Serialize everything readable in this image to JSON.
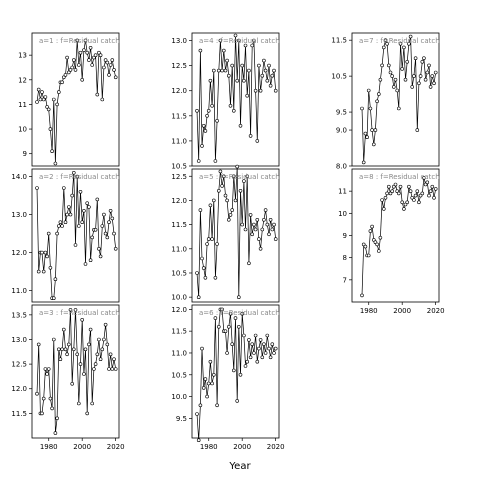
{
  "figure": {
    "xlabel": "Year"
  },
  "chart_data": [
    {
      "type": "line",
      "title": "a=1 : f=Residual catch",
      "x": [
        1973,
        1974,
        1975,
        1976,
        1977,
        1978,
        1979,
        1980,
        1981,
        1982,
        1983,
        1984,
        1985,
        1986,
        1987,
        1988,
        1989,
        1990,
        1991,
        1992,
        1993,
        1994,
        1995,
        1996,
        1997,
        1998,
        1999,
        2000,
        2001,
        2002,
        2003,
        2004,
        2005,
        2006,
        2007,
        2008,
        2009,
        2010,
        2011,
        2012,
        2013,
        2014,
        2015,
        2016,
        2017,
        2018,
        2019,
        2020
      ],
      "y": [
        11.1,
        11.6,
        11.2,
        11.5,
        11.2,
        11.3,
        10.9,
        10.8,
        10.0,
        9.1,
        11.2,
        8.6,
        11.0,
        11.5,
        11.9,
        11.9,
        12.1,
        12.2,
        12.9,
        12.3,
        12.4,
        12.5,
        12.8,
        12.4,
        13.6,
        12.6,
        13.1,
        12.0,
        13.2,
        13.6,
        13.1,
        12.8,
        13.3,
        12.6,
        12.9,
        13.0,
        11.4,
        13.1,
        13.0,
        11.2,
        12.5,
        12.8,
        12.7,
        12.2,
        12.6,
        12.8,
        12.4,
        12.1
      ],
      "xlim": [
        1970,
        2022
      ],
      "ylim": [
        8.5,
        13.9
      ],
      "yticks": [
        "9",
        "10",
        "11",
        "12",
        "13"
      ],
      "ytick_values": [
        9,
        10,
        11,
        12,
        13
      ]
    },
    {
      "type": "line",
      "title": "a=2 : f=Residual catch",
      "x": [
        1973,
        1974,
        1975,
        1976,
        1977,
        1978,
        1979,
        1980,
        1981,
        1982,
        1983,
        1984,
        1985,
        1986,
        1987,
        1988,
        1989,
        1990,
        1991,
        1992,
        1993,
        1994,
        1995,
        1996,
        1997,
        1998,
        1999,
        2000,
        2001,
        2002,
        2003,
        2004,
        2005,
        2006,
        2007,
        2008,
        2009,
        2010,
        2011,
        2012,
        2013,
        2014,
        2015,
        2016,
        2017,
        2018,
        2019,
        2020
      ],
      "y": [
        13.7,
        11.5,
        12.0,
        12.0,
        11.5,
        12.0,
        11.9,
        12.5,
        11.6,
        10.8,
        10.8,
        11.3,
        12.5,
        12.7,
        12.8,
        12.7,
        13.7,
        12.8,
        13.0,
        13.2,
        13.0,
        13.5,
        14.1,
        12.2,
        14.0,
        12.7,
        13.6,
        12.8,
        13.1,
        11.7,
        13.3,
        13.2,
        11.8,
        12.4,
        12.6,
        12.6,
        13.4,
        12.1,
        11.9,
        12.7,
        13.0,
        12.5,
        12.4,
        12.8,
        13.1,
        12.9,
        12.5,
        12.1
      ],
      "xlim": [
        1970,
        2022
      ],
      "ylim": [
        10.7,
        14.2
      ],
      "yticks": [
        "11.0",
        "12.0",
        "13.0",
        "14.0"
      ],
      "ytick_values": [
        11,
        12,
        13,
        14
      ]
    },
    {
      "type": "line",
      "title": "a=3 : f=Residual catch",
      "x": [
        1973,
        1974,
        1975,
        1976,
        1977,
        1978,
        1979,
        1980,
        1981,
        1982,
        1983,
        1984,
        1985,
        1986,
        1987,
        1988,
        1989,
        1990,
        1991,
        1992,
        1993,
        1994,
        1995,
        1996,
        1997,
        1998,
        1999,
        2000,
        2001,
        2002,
        2003,
        2004,
        2005,
        2006,
        2007,
        2008,
        2009,
        2010,
        2011,
        2012,
        2013,
        2014,
        2015,
        2016,
        2017,
        2018,
        2019,
        2020
      ],
      "y": [
        11.9,
        12.9,
        11.5,
        11.5,
        11.8,
        12.4,
        12.3,
        12.4,
        11.8,
        11.6,
        13.0,
        11.1,
        11.4,
        12.8,
        12.6,
        12.8,
        13.2,
        12.8,
        12.7,
        12.9,
        13.6,
        12.1,
        12.8,
        13.6,
        12.7,
        11.7,
        12.5,
        13.4,
        12.3,
        12.8,
        11.5,
        12.9,
        13.2,
        11.7,
        12.4,
        12.5,
        12.7,
        13.0,
        12.6,
        12.8,
        13.0,
        13.3,
        12.9,
        12.4,
        12.7,
        12.4,
        12.6,
        12.4
      ],
      "xlim": [
        1970,
        2022
      ],
      "ylim": [
        11.0,
        13.7
      ],
      "yticks": [
        "11.5",
        "12.0",
        "12.5",
        "13.0",
        "13.5"
      ],
      "ytick_values": [
        11.5,
        12,
        12.5,
        13,
        13.5
      ]
    },
    {
      "type": "line",
      "title": "a=4 : f=Residual catch",
      "x": [
        1973,
        1974,
        1975,
        1976,
        1977,
        1978,
        1979,
        1980,
        1981,
        1982,
        1983,
        1984,
        1985,
        1986,
        1987,
        1988,
        1989,
        1990,
        1991,
        1992,
        1993,
        1994,
        1995,
        1996,
        1997,
        1998,
        1999,
        2000,
        2001,
        2002,
        2003,
        2004,
        2005,
        2006,
        2007,
        2008,
        2009,
        2010,
        2011,
        2012,
        2013,
        2014,
        2015,
        2016,
        2017,
        2018,
        2019,
        2020
      ],
      "y": [
        11.6,
        10.6,
        12.8,
        10.9,
        11.3,
        11.2,
        11.5,
        11.6,
        12.2,
        11.7,
        12.4,
        10.6,
        11.4,
        12.4,
        13.0,
        12.4,
        12.8,
        12.4,
        12.6,
        12.3,
        11.7,
        12.5,
        11.6,
        13.1,
        12.2,
        13.0,
        11.3,
        12.5,
        12.2,
        12.9,
        11.9,
        12.4,
        11.1,
        12.9,
        13.0,
        12.0,
        11.0,
        12.5,
        12.0,
        12.3,
        12.6,
        12.4,
        12.2,
        12.5,
        12.1,
        12.3,
        12.4,
        12.0
      ],
      "xlim": [
        1970,
        2022
      ],
      "ylim": [
        10.5,
        13.15
      ],
      "yticks": [
        "10.5",
        "11.0",
        "11.5",
        "12.0",
        "12.5",
        "13.0"
      ],
      "ytick_values": [
        10.5,
        11,
        11.5,
        12,
        12.5,
        13
      ]
    },
    {
      "type": "line",
      "title": "a=5 : f=Residual catch",
      "x": [
        1973,
        1974,
        1975,
        1976,
        1977,
        1978,
        1979,
        1980,
        1981,
        1982,
        1983,
        1984,
        1985,
        1986,
        1987,
        1988,
        1989,
        1990,
        1991,
        1992,
        1993,
        1994,
        1995,
        1996,
        1997,
        1998,
        1999,
        2000,
        2001,
        2002,
        2003,
        2004,
        2005,
        2006,
        2007,
        2008,
        2009,
        2010,
        2011,
        2012,
        2013,
        2014,
        2015,
        2016,
        2017,
        2018,
        2019,
        2020
      ],
      "y": [
        10.5,
        10.0,
        11.8,
        10.8,
        10.6,
        10.4,
        11.1,
        11.2,
        11.9,
        11.2,
        12.0,
        10.4,
        11.1,
        12.2,
        12.6,
        12.3,
        12.5,
        12.1,
        12.0,
        11.6,
        11.7,
        11.8,
        12.5,
        12.0,
        12.7,
        10.0,
        12.2,
        11.5,
        12.4,
        11.4,
        12.5,
        10.7,
        11.7,
        11.3,
        11.5,
        11.4,
        11.6,
        11.2,
        11.0,
        11.4,
        11.6,
        11.8,
        11.5,
        11.3,
        11.6,
        11.4,
        11.5,
        11.2
      ],
      "xlim": [
        1970,
        2022
      ],
      "ylim": [
        9.9,
        12.65
      ],
      "yticks": [
        "10.0",
        "10.5",
        "11.0",
        "11.5",
        "12.0",
        "12.5"
      ],
      "ytick_values": [
        10,
        10.5,
        11,
        11.5,
        12,
        12.5
      ]
    },
    {
      "type": "line",
      "title": "a=6 : f=Residual catch",
      "x": [
        1973,
        1974,
        1975,
        1976,
        1977,
        1978,
        1979,
        1980,
        1981,
        1982,
        1983,
        1984,
        1985,
        1986,
        1987,
        1988,
        1989,
        1990,
        1991,
        1992,
        1993,
        1994,
        1995,
        1996,
        1997,
        1998,
        1999,
        2000,
        2001,
        2002,
        2003,
        2004,
        2005,
        2006,
        2007,
        2008,
        2009,
        2010,
        2011,
        2012,
        2013,
        2014,
        2015,
        2016,
        2017,
        2018,
        2019,
        2020
      ],
      "y": [
        9.6,
        9.0,
        9.8,
        11.1,
        10.2,
        10.4,
        10.0,
        10.3,
        10.8,
        10.3,
        10.5,
        11.8,
        9.8,
        11.6,
        12.0,
        12.0,
        11.5,
        11.5,
        11.0,
        11.6,
        11.9,
        11.2,
        10.6,
        11.8,
        9.9,
        11.6,
        10.5,
        11.9,
        11.4,
        10.7,
        10.8,
        11.3,
        10.9,
        11.2,
        11.0,
        11.4,
        10.8,
        11.1,
        11.3,
        10.9,
        11.2,
        11.0,
        11.4,
        11.1,
        10.9,
        11.2,
        11.0,
        11.1
      ],
      "xlim": [
        1970,
        2022
      ],
      "ylim": [
        9.05,
        12.1
      ],
      "yticks": [
        "9.5",
        "10.0",
        "10.5",
        "11.0",
        "11.5",
        "12.0"
      ],
      "ytick_values": [
        9.5,
        10,
        10.5,
        11,
        11.5,
        12
      ]
    },
    {
      "type": "line",
      "title": "a=7 : f=Residual catch",
      "x": [
        1976,
        1977,
        1978,
        1979,
        1980,
        1981,
        1982,
        1983,
        1984,
        1985,
        1986,
        1987,
        1988,
        1989,
        1990,
        1991,
        1992,
        1993,
        1994,
        1995,
        1996,
        1997,
        1998,
        1999,
        2000,
        2001,
        2002,
        2003,
        2004,
        2005,
        2006,
        2007,
        2008,
        2009,
        2010,
        2011,
        2012,
        2013,
        2014,
        2015,
        2016,
        2017,
        2018,
        2019,
        2020
      ],
      "y": [
        9.6,
        8.1,
        8.9,
        8.8,
        10.1,
        9.6,
        9.0,
        8.6,
        9.0,
        9.8,
        10.0,
        10.4,
        10.8,
        11.3,
        11.5,
        11.4,
        10.8,
        10.6,
        10.5,
        10.2,
        10.4,
        10.1,
        9.6,
        11.4,
        10.7,
        11.3,
        10.4,
        10.9,
        11.4,
        11.6,
        10.2,
        10.5,
        11.0,
        9.0,
        10.3,
        10.5,
        10.9,
        11.0,
        10.4,
        10.6,
        10.8,
        10.2,
        10.5,
        10.3,
        10.6
      ],
      "xlim": [
        1970,
        2022
      ],
      "ylim": [
        8.0,
        11.7
      ],
      "yticks": [
        "8.0",
        "9.0",
        "9.5",
        "10.5",
        "11.5"
      ],
      "ytick_values": [
        8,
        9,
        9.5,
        10.5,
        11.5
      ]
    },
    {
      "type": "line",
      "title": "a=8 : f=Residual catch",
      "x": [
        1976,
        1977,
        1978,
        1979,
        1980,
        1981,
        1982,
        1983,
        1984,
        1985,
        1986,
        1987,
        1988,
        1989,
        1990,
        1991,
        1992,
        1993,
        1994,
        1995,
        1996,
        1997,
        1998,
        1999,
        2000,
        2001,
        2002,
        2003,
        2004,
        2005,
        2006,
        2007,
        2008,
        2009,
        2010,
        2011,
        2012,
        2013,
        2014,
        2015,
        2016,
        2017,
        2018,
        2019,
        2020
      ],
      "y": [
        6.3,
        8.6,
        8.5,
        8.1,
        8.1,
        9.2,
        9.4,
        8.8,
        8.7,
        8.6,
        8.3,
        8.9,
        10.6,
        10.2,
        10.7,
        10.9,
        11.2,
        10.9,
        11.0,
        11.2,
        11.3,
        11.0,
        10.9,
        11.2,
        10.5,
        10.2,
        10.4,
        10.5,
        11.2,
        11.0,
        10.7,
        10.6,
        10.8,
        11.0,
        10.5,
        10.8,
        10.9,
        11.6,
        11.3,
        11.4,
        10.8,
        11.0,
        11.2,
        10.7,
        11.1
      ],
      "xlim": [
        1970,
        2022
      ],
      "ylim": [
        6.0,
        12.0
      ],
      "yticks": [
        "7",
        "8",
        "9",
        "10",
        "11"
      ],
      "ytick_values": [
        7,
        8,
        9,
        10,
        11
      ]
    }
  ]
}
